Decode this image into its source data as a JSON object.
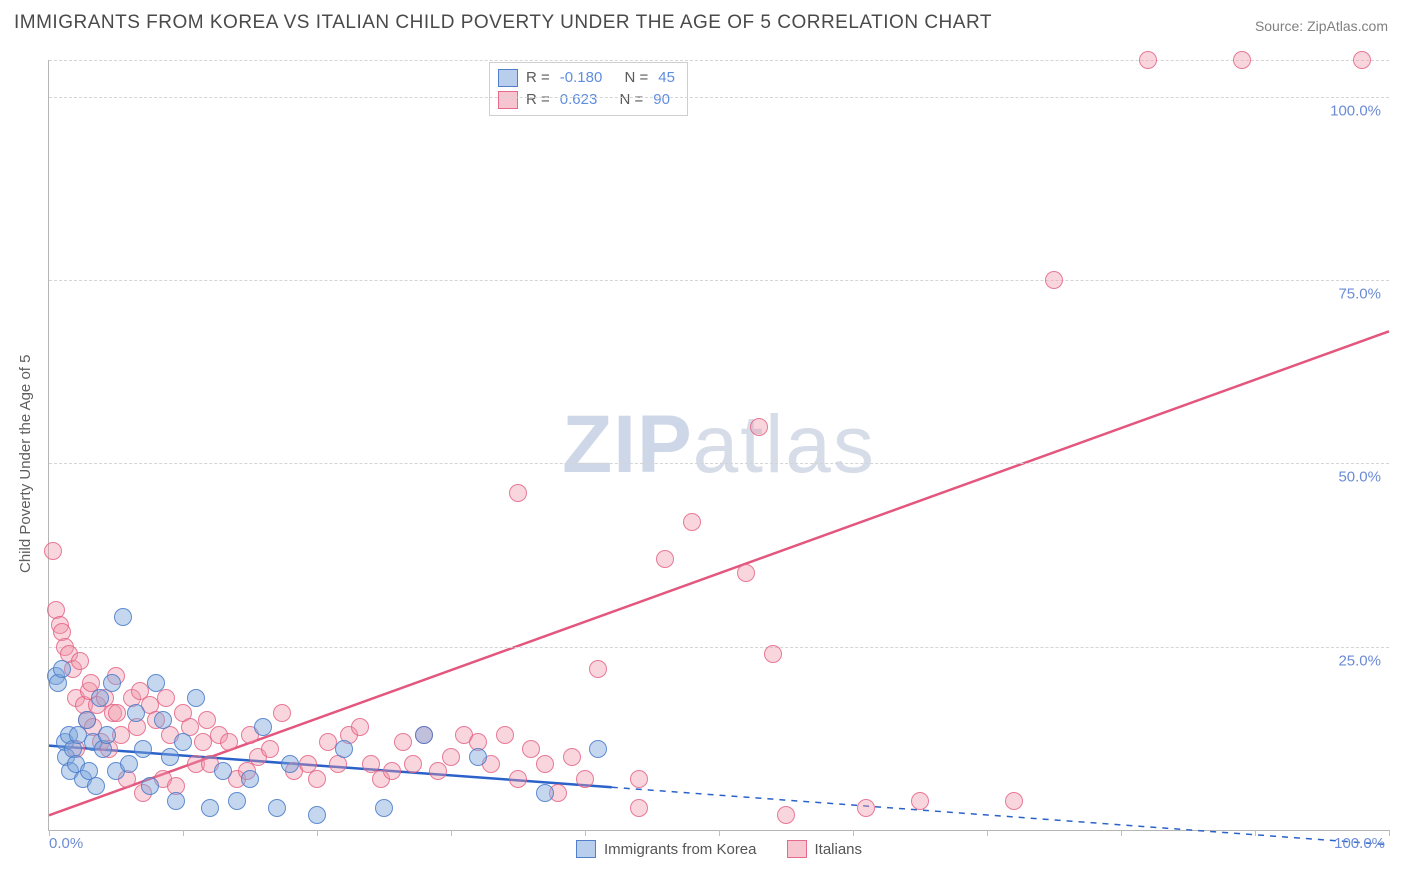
{
  "title": "IMMIGRANTS FROM KOREA VS ITALIAN CHILD POVERTY UNDER THE AGE OF 5 CORRELATION CHART",
  "source_label": "Source: ZipAtlas.com",
  "ylabel": "Child Poverty Under the Age of 5",
  "watermark": {
    "zip": "ZIP",
    "atlas": "atlas"
  },
  "chart": {
    "type": "scatter",
    "background_color": "#ffffff",
    "grid_color": "#d5d5d5",
    "axis_color": "#b5b5b5",
    "text_color": "#606060",
    "value_color": "#5f8de0",
    "xlim": [
      0,
      100
    ],
    "ylim": [
      0,
      105
    ],
    "y_gridlines": [
      25,
      50,
      75,
      100,
      105
    ],
    "ytick_labels": [
      "25.0%",
      "50.0%",
      "75.0%",
      "100.0%"
    ],
    "ytick_values": [
      25,
      50,
      75,
      100
    ],
    "x_ticks": [
      0,
      10,
      20,
      30,
      40,
      50,
      60,
      70,
      80,
      90,
      100
    ],
    "xtick_label_left": "0.0%",
    "xtick_label_right": "100.0%",
    "tick_label_fontsize": 15,
    "title_fontsize": 19,
    "ylabel_fontsize": 15
  },
  "series": {
    "blue": {
      "name": "Immigrants from Korea",
      "marker_color_fill": "rgba(125,166,220,0.45)",
      "marker_color_stroke": "rgba(70,120,200,0.8)",
      "marker_radius": 8,
      "R": "-0.180",
      "N": "45",
      "trend": {
        "x1": 0,
        "y1": 11.5,
        "x2": 100,
        "y2": -2,
        "solid_until_x": 42,
        "stroke": "#2b62c9",
        "width": 2.5
      },
      "points": [
        [
          0.5,
          21
        ],
        [
          0.7,
          20
        ],
        [
          1,
          22
        ],
        [
          1.2,
          12
        ],
        [
          1.3,
          10
        ],
        [
          1.5,
          13
        ],
        [
          1.6,
          8
        ],
        [
          1.8,
          11
        ],
        [
          2,
          9
        ],
        [
          2.2,
          13
        ],
        [
          2.5,
          7
        ],
        [
          2.8,
          15
        ],
        [
          3,
          8
        ],
        [
          3.3,
          12
        ],
        [
          3.5,
          6
        ],
        [
          3.8,
          18
        ],
        [
          4,
          11
        ],
        [
          4.3,
          13
        ],
        [
          4.7,
          20
        ],
        [
          5,
          8
        ],
        [
          5.5,
          29
        ],
        [
          6,
          9
        ],
        [
          6.5,
          16
        ],
        [
          7,
          11
        ],
        [
          7.5,
          6
        ],
        [
          8,
          20
        ],
        [
          8.5,
          15
        ],
        [
          9,
          10
        ],
        [
          9.5,
          4
        ],
        [
          10,
          12
        ],
        [
          11,
          18
        ],
        [
          12,
          3
        ],
        [
          13,
          8
        ],
        [
          14,
          4
        ],
        [
          15,
          7
        ],
        [
          16,
          14
        ],
        [
          17,
          3
        ],
        [
          18,
          9
        ],
        [
          20,
          2
        ],
        [
          22,
          11
        ],
        [
          25,
          3
        ],
        [
          28,
          13
        ],
        [
          32,
          10
        ],
        [
          37,
          5
        ],
        [
          41,
          11
        ]
      ]
    },
    "pink": {
      "name": "Italians",
      "marker_color_fill": "rgba(240,150,170,0.40)",
      "marker_color_stroke": "rgba(225,90,125,0.75)",
      "marker_radius": 8,
      "R": "0.623",
      "N": "90",
      "trend": {
        "x1": 0,
        "y1": 2,
        "x2": 100,
        "y2": 68,
        "solid_until_x": 100,
        "stroke": "#e3567e",
        "width": 2.5
      },
      "points": [
        [
          0.3,
          38
        ],
        [
          0.5,
          30
        ],
        [
          0.8,
          28
        ],
        [
          1,
          27
        ],
        [
          1.2,
          25
        ],
        [
          1.5,
          24
        ],
        [
          1.8,
          22
        ],
        [
          2,
          18
        ],
        [
          2.3,
          23
        ],
        [
          2.6,
          17
        ],
        [
          2.8,
          15
        ],
        [
          3,
          19
        ],
        [
          3.3,
          14
        ],
        [
          3.6,
          17
        ],
        [
          3.9,
          12
        ],
        [
          4.2,
          18
        ],
        [
          4.5,
          11
        ],
        [
          4.8,
          16
        ],
        [
          5.1,
          16
        ],
        [
          5.4,
          13
        ],
        [
          5.8,
          7
        ],
        [
          6.2,
          18
        ],
        [
          6.6,
          14
        ],
        [
          7,
          5
        ],
        [
          7.5,
          17
        ],
        [
          8,
          15
        ],
        [
          8.5,
          7
        ],
        [
          9,
          13
        ],
        [
          9.5,
          6
        ],
        [
          10,
          16
        ],
        [
          10.5,
          14
        ],
        [
          11,
          9
        ],
        [
          11.5,
          12
        ],
        [
          12,
          9
        ],
        [
          12.7,
          13
        ],
        [
          13.4,
          12
        ],
        [
          14,
          7
        ],
        [
          14.8,
          8
        ],
        [
          15.6,
          10
        ],
        [
          16.5,
          11
        ],
        [
          17.4,
          16
        ],
        [
          18.3,
          8
        ],
        [
          19.3,
          9
        ],
        [
          20,
          7
        ],
        [
          20.8,
          12
        ],
        [
          21.6,
          9
        ],
        [
          22.4,
          13
        ],
        [
          23.2,
          14
        ],
        [
          24,
          9
        ],
        [
          24.8,
          7
        ],
        [
          25.6,
          8
        ],
        [
          26.4,
          12
        ],
        [
          27.2,
          9
        ],
        [
          28,
          13
        ],
        [
          29,
          8
        ],
        [
          30,
          10
        ],
        [
          31,
          13
        ],
        [
          32,
          12
        ],
        [
          33,
          9
        ],
        [
          34,
          13
        ],
        [
          35,
          7
        ],
        [
          36,
          11
        ],
        [
          37,
          9
        ],
        [
          38,
          5
        ],
        [
          39,
          10
        ],
        [
          40,
          7
        ],
        [
          35,
          46
        ],
        [
          41,
          22
        ],
        [
          44,
          3
        ],
        [
          44,
          7
        ],
        [
          46,
          37
        ],
        [
          48,
          42
        ],
        [
          52,
          35
        ],
        [
          53,
          55
        ],
        [
          54,
          24
        ],
        [
          55,
          2
        ],
        [
          61,
          3
        ],
        [
          65,
          4
        ],
        [
          72,
          4
        ],
        [
          75,
          75
        ],
        [
          82,
          105
        ],
        [
          89,
          105
        ],
        [
          98,
          105
        ],
        [
          2,
          11
        ],
        [
          3.1,
          20
        ],
        [
          5,
          21
        ],
        [
          6.8,
          19
        ],
        [
          8.7,
          18
        ],
        [
          11.8,
          15
        ],
        [
          15,
          13
        ]
      ]
    }
  },
  "stats_labels": {
    "R": "R  =",
    "N": "N  ="
  },
  "legend_bottom": [
    {
      "swatch": "blue",
      "label_key": "series.blue.name"
    },
    {
      "swatch": "pink",
      "label_key": "series.pink.name"
    }
  ]
}
